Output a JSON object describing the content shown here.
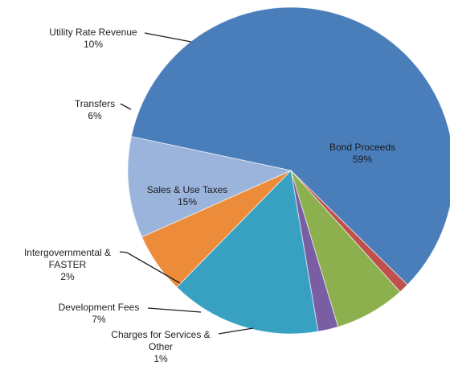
{
  "chart_data": {
    "type": "pie",
    "title": "",
    "legend": "none",
    "slices": [
      {
        "label": "Bond Proceeds",
        "value": 59,
        "value_label": "59%",
        "color": "#4A7EBB"
      },
      {
        "label": "Charges for Services & Other",
        "value": 1,
        "value_label": "1%",
        "color": "#C0504D"
      },
      {
        "label": "Development Fees",
        "value": 7,
        "value_label": "7%",
        "color": "#8DB04E"
      },
      {
        "label": "Intergovernmental & FASTER",
        "value": 2,
        "value_label": "2%",
        "color": "#7A5EA3"
      },
      {
        "label": "Sales & Use Taxes",
        "value": 15,
        "value_label": "15%",
        "color": "#38A1C2"
      },
      {
        "label": "Transfers",
        "value": 6,
        "value_label": "6%",
        "color": "#EC8C3A"
      },
      {
        "label": "Utility Rate Revenue",
        "value": 10,
        "value_label": "10%",
        "color": "#9BB4DC"
      }
    ]
  }
}
